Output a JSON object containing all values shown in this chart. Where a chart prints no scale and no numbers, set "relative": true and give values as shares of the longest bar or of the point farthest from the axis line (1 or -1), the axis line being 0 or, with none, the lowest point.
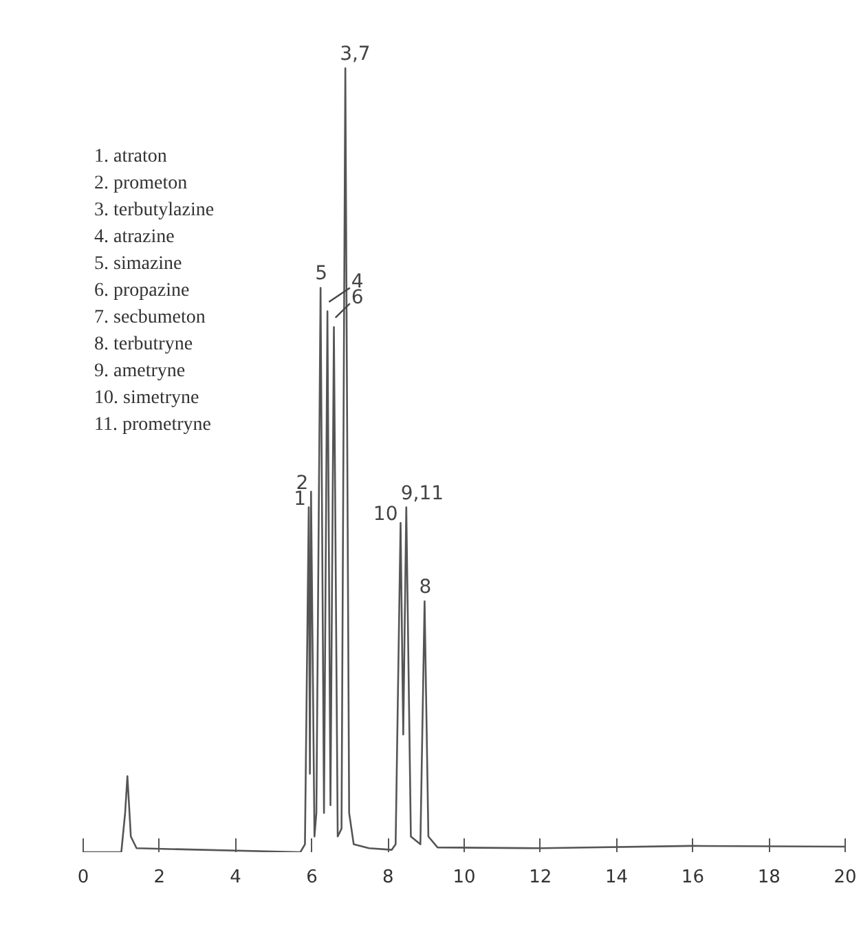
{
  "chart_data": {
    "type": "line",
    "relative": true,
    "color": "#555555",
    "x": [
      0,
      1.0,
      1.1,
      1.16,
      1.25,
      1.4,
      5.7,
      5.82,
      5.92,
      5.95,
      5.98,
      6.07,
      6.12,
      6.23,
      6.32,
      6.41,
      6.49,
      6.58,
      6.68,
      6.78,
      6.88,
      6.98,
      7.1,
      7.5,
      8.1,
      8.2,
      8.33,
      8.4,
      8.48,
      8.6,
      8.85,
      8.96,
      9.06,
      9.3,
      12,
      16,
      20
    ],
    "values": [
      0,
      0,
      0.05,
      0.097,
      0.02,
      0.005,
      0,
      0.01,
      0.44,
      0.1,
      0.46,
      0.02,
      0.05,
      0.72,
      0.05,
      0.69,
      0.06,
      0.67,
      0.02,
      0.03,
      1.0,
      0.05,
      0.01,
      0.005,
      0.003,
      0.01,
      0.42,
      0.15,
      0.44,
      0.02,
      0.01,
      0.32,
      0.02,
      0.006,
      0.005,
      0.008,
      0.007
    ],
    "xlim": [
      0,
      20
    ],
    "xticks": [
      0,
      2,
      4,
      6,
      8,
      10,
      12,
      14,
      16,
      18,
      20
    ],
    "grid": false,
    "annotations": [
      {
        "text": "1",
        "x": 5.92,
        "y": 0.44
      },
      {
        "text": "2",
        "x": 5.98,
        "y": 0.46
      },
      {
        "text": "5",
        "x": 6.23,
        "y": 0.72
      },
      {
        "text": "4",
        "x": 6.41,
        "y": 0.69
      },
      {
        "text": "6",
        "x": 6.58,
        "y": 0.67
      },
      {
        "text": "3,7",
        "x": 6.88,
        "y": 1.0
      },
      {
        "text": "10",
        "x": 8.33,
        "y": 0.42
      },
      {
        "text": "9,11",
        "x": 8.48,
        "y": 0.44
      },
      {
        "text": "8",
        "x": 8.96,
        "y": 0.32
      },
      "1.  atraton",
      "2.  prometon",
      "3.  terbutylazine",
      "4.  atrazine",
      "5.  simazine",
      "6.  propazine",
      "7.  secbumeton",
      "8.  terbutryne",
      "9.  ametryne",
      "10.  simetryne",
      "11.  prometryne"
    ]
  }
}
